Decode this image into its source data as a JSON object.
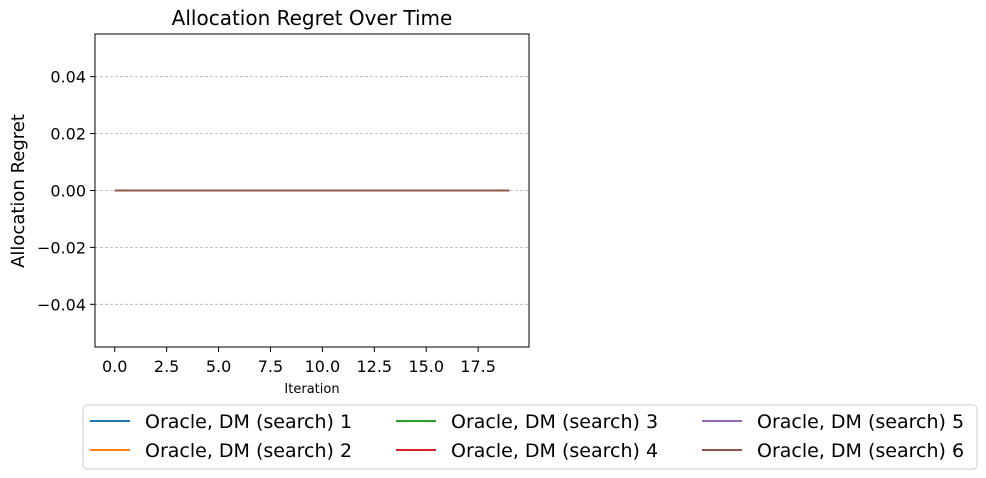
{
  "chart_data": {
    "type": "line",
    "title": "Allocation Regret Over Time",
    "xlabel": "Iteration",
    "ylabel": "Allocation Regret",
    "xlim": [
      -0.95,
      19.95
    ],
    "ylim": [
      -0.055,
      0.055
    ],
    "xticks": [
      0.0,
      2.5,
      5.0,
      7.5,
      10.0,
      12.5,
      15.0,
      17.5
    ],
    "xtick_labels": [
      "0.0",
      "2.5",
      "5.0",
      "7.5",
      "10.0",
      "12.5",
      "15.0",
      "17.5"
    ],
    "yticks": [
      0.04,
      0.02,
      0.0,
      -0.02,
      -0.04
    ],
    "ytick_labels": [
      "0.04",
      "0.02",
      "0.00",
      "−0.02",
      "−0.04"
    ],
    "grid": "horizontal dashed",
    "legend_placement": "below plot, 3 columns",
    "x": [
      0,
      1,
      2,
      3,
      4,
      5,
      6,
      7,
      8,
      9,
      10,
      11,
      12,
      13,
      14,
      15,
      16,
      17,
      18,
      19
    ],
    "series": [
      {
        "name": "Oracle, DM (search) 1",
        "color": "#1f77b4",
        "values": [
          0,
          0,
          0,
          0,
          0,
          0,
          0,
          0,
          0,
          0,
          0,
          0,
          0,
          0,
          0,
          0,
          0,
          0,
          0,
          0
        ]
      },
      {
        "name": "Oracle, DM (search) 2",
        "color": "#ff7f0e",
        "values": [
          0,
          0,
          0,
          0,
          0,
          0,
          0,
          0,
          0,
          0,
          0,
          0,
          0,
          0,
          0,
          0,
          0,
          0,
          0,
          0
        ]
      },
      {
        "name": "Oracle, DM (search) 3",
        "color": "#2ca02c",
        "values": [
          0,
          0,
          0,
          0,
          0,
          0,
          0,
          0,
          0,
          0,
          0,
          0,
          0,
          0,
          0,
          0,
          0,
          0,
          0,
          0
        ]
      },
      {
        "name": "Oracle, DM (search) 4",
        "color": "#d62728",
        "values": [
          0,
          0,
          0,
          0,
          0,
          0,
          0,
          0,
          0,
          0,
          0,
          0,
          0,
          0,
          0,
          0,
          0,
          0,
          0,
          0
        ]
      },
      {
        "name": "Oracle, DM (search) 5",
        "color": "#9467bd",
        "values": [
          0,
          0,
          0,
          0,
          0,
          0,
          0,
          0,
          0,
          0,
          0,
          0,
          0,
          0,
          0,
          0,
          0,
          0,
          0,
          0
        ]
      },
      {
        "name": "Oracle, DM (search) 6",
        "color": "#8c564b",
        "values": [
          0,
          0,
          0,
          0,
          0,
          0,
          0,
          0,
          0,
          0,
          0,
          0,
          0,
          0,
          0,
          0,
          0,
          0,
          0,
          0
        ]
      }
    ]
  }
}
